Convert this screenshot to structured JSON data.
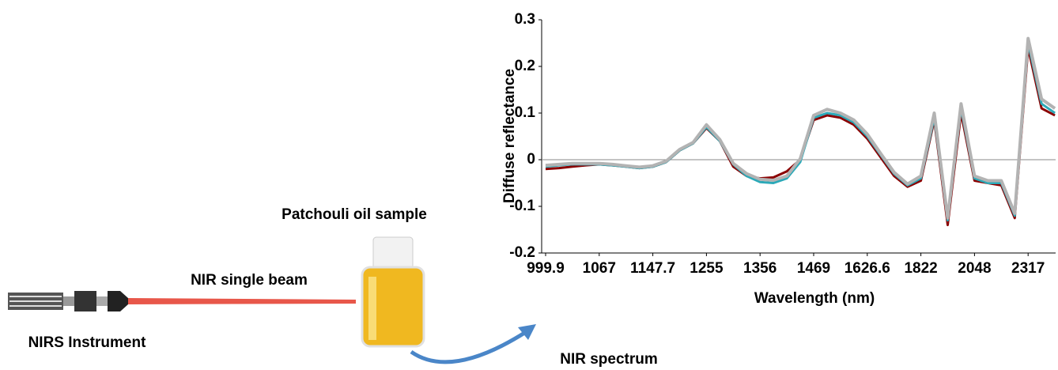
{
  "labels": {
    "sample": "Patchouli oil sample",
    "beam": "NIR single beam",
    "instrument": "NIRS Instrument",
    "spectrum": "NIR spectrum"
  },
  "chart_data": {
    "type": "line",
    "y_label": "Diffuse reflectance",
    "x_label": "Wavelength (nm)",
    "categories": [
      "999.9",
      null,
      null,
      null,
      "1067",
      null,
      null,
      null,
      "1147.7",
      null,
      null,
      null,
      "1255",
      null,
      null,
      null,
      "1356",
      null,
      null,
      null,
      "1469",
      null,
      null,
      null,
      "1626.6",
      null,
      null,
      null,
      "1822",
      null,
      null,
      null,
      "2048",
      null,
      null,
      null,
      "2317",
      null,
      null
    ],
    "series": [
      {
        "color": "#8b0000",
        "values": [
          -0.02,
          -0.018,
          -0.015,
          -0.012,
          -0.01,
          -0.012,
          -0.015,
          -0.018,
          -0.015,
          -0.005,
          0.02,
          0.035,
          0.068,
          0.04,
          -0.015,
          -0.035,
          -0.04,
          -0.038,
          -0.025,
          0.0,
          0.085,
          0.095,
          0.09,
          0.075,
          0.045,
          0.005,
          -0.035,
          -0.058,
          -0.045,
          0.085,
          -0.14,
          0.1,
          -0.045,
          -0.05,
          -0.055,
          -0.125,
          0.24,
          0.11,
          0.095
        ]
      },
      {
        "color": "#2ca9b8",
        "values": [
          -0.015,
          -0.012,
          -0.01,
          -0.01,
          -0.01,
          -0.012,
          -0.015,
          -0.018,
          -0.015,
          -0.005,
          0.02,
          0.035,
          0.07,
          0.04,
          -0.01,
          -0.035,
          -0.048,
          -0.05,
          -0.04,
          -0.005,
          0.09,
          0.1,
          0.095,
          0.08,
          0.05,
          0.01,
          -0.03,
          -0.055,
          -0.04,
          0.09,
          -0.13,
          0.11,
          -0.04,
          -0.05,
          -0.05,
          -0.12,
          0.25,
          0.12,
          0.1
        ]
      },
      {
        "color": "#b3b3b3",
        "values": [
          -0.012,
          -0.01,
          -0.008,
          -0.008,
          -0.008,
          -0.01,
          -0.013,
          -0.016,
          -0.013,
          -0.003,
          0.022,
          0.037,
          0.075,
          0.043,
          -0.008,
          -0.03,
          -0.042,
          -0.044,
          -0.035,
          0.002,
          0.095,
          0.108,
          0.1,
          0.085,
          0.055,
          0.013,
          -0.027,
          -0.052,
          -0.035,
          0.1,
          -0.125,
          0.12,
          -0.035,
          -0.045,
          -0.045,
          -0.115,
          0.26,
          0.13,
          0.11
        ]
      }
    ],
    "ylim": [
      -0.2,
      0.3
    ],
    "yticks": [
      -0.2,
      -0.1,
      0,
      0.1,
      0.2,
      0.3
    ],
    "zero_line": true
  }
}
